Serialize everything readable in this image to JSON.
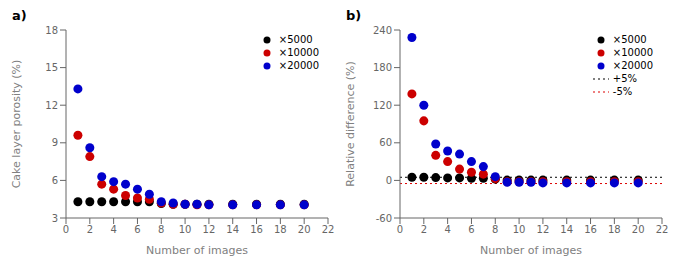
{
  "chart_data": [
    {
      "type": "scatter",
      "title": "a)",
      "x_label": "Number of images",
      "y_label": "Cake layer porosity (%)",
      "xlim": [
        0,
        22
      ],
      "ylim": [
        3,
        18
      ],
      "xticks": [
        0,
        2,
        4,
        6,
        8,
        10,
        12,
        14,
        16,
        18,
        20,
        22
      ],
      "yticks": [
        3,
        6,
        9,
        12,
        15,
        18
      ],
      "grid": false,
      "legend": "upper right",
      "series": [
        {
          "name": "×5000",
          "color": "#000000",
          "marker": "circle",
          "x": [
            1,
            2,
            3,
            4,
            5,
            6,
            7,
            8,
            9,
            10,
            11,
            12,
            14,
            16,
            18,
            20
          ],
          "values": [
            4.3,
            4.3,
            4.3,
            4.3,
            4.3,
            4.3,
            4.3,
            4.15,
            4.1,
            4.1,
            4.1,
            4.1,
            4.1,
            4.1,
            4.1,
            4.1
          ]
        },
        {
          "name": "×10000",
          "color": "#cc0000",
          "marker": "circle",
          "x": [
            1,
            2,
            3,
            4,
            5,
            6,
            7,
            8,
            9,
            10,
            11,
            12,
            14,
            16,
            18,
            20
          ],
          "values": [
            9.6,
            7.9,
            5.7,
            5.3,
            4.8,
            4.6,
            4.5,
            4.2,
            4.1,
            4.1,
            4.05,
            4.05,
            4.05,
            4.05,
            4.05,
            4.05
          ]
        },
        {
          "name": "×20000",
          "color": "#0000cc",
          "marker": "circle",
          "x": [
            1,
            2,
            3,
            4,
            5,
            6,
            7,
            8,
            9,
            10,
            11,
            12,
            14,
            16,
            18,
            20
          ],
          "values": [
            13.3,
            8.6,
            6.3,
            5.9,
            5.7,
            5.3,
            4.9,
            4.3,
            4.2,
            4.1,
            4.1,
            4.05,
            4.05,
            4.05,
            4.05,
            4.05
          ]
        }
      ]
    },
    {
      "type": "scatter",
      "title": "b)",
      "x_label": "Number of images",
      "y_label": "Relative difference (%)",
      "xlim": [
        0,
        22
      ],
      "ylim": [
        -60,
        240
      ],
      "xticks": [
        0,
        2,
        4,
        6,
        8,
        10,
        12,
        14,
        16,
        18,
        20,
        22
      ],
      "yticks": [
        -60,
        0,
        60,
        120,
        180,
        240
      ],
      "grid": false,
      "legend": "upper right",
      "series": [
        {
          "name": "×5000",
          "color": "#000000",
          "marker": "circle",
          "x": [
            1,
            2,
            3,
            4,
            5,
            6,
            7,
            8,
            9,
            10,
            11,
            12,
            14,
            16,
            18,
            20
          ],
          "values": [
            5.0,
            5.0,
            4.5,
            4.0,
            4.0,
            3.5,
            3.5,
            2.0,
            0.5,
            0.5,
            0.5,
            0.5,
            0.5,
            0.5,
            0.5,
            0.5
          ]
        },
        {
          "name": "×10000",
          "color": "#cc0000",
          "marker": "circle",
          "x": [
            1,
            2,
            3,
            4,
            5,
            6,
            7,
            8,
            9,
            10,
            11,
            12,
            14,
            16,
            18,
            20
          ],
          "values": [
            138,
            95,
            40,
            30,
            18,
            13,
            10,
            3,
            -2,
            -2,
            -2,
            -2,
            -2,
            -2,
            -2,
            -2
          ]
        },
        {
          "name": "×20000",
          "color": "#0000cc",
          "marker": "circle",
          "x": [
            1,
            2,
            3,
            4,
            5,
            6,
            7,
            8,
            9,
            10,
            11,
            12,
            14,
            16,
            18,
            20
          ],
          "values": [
            228,
            120,
            58,
            47,
            42,
            30,
            22,
            6,
            -3,
            -3,
            -3,
            -4,
            -4,
            -4,
            -4,
            -4
          ]
        }
      ],
      "reference_lines": [
        {
          "name": "+5%",
          "y": 5,
          "color": "#000000",
          "line_style": "dotted"
        },
        {
          "name": "-5%",
          "y": -5,
          "color": "#dd0000",
          "line_style": "dotted"
        }
      ]
    }
  ]
}
